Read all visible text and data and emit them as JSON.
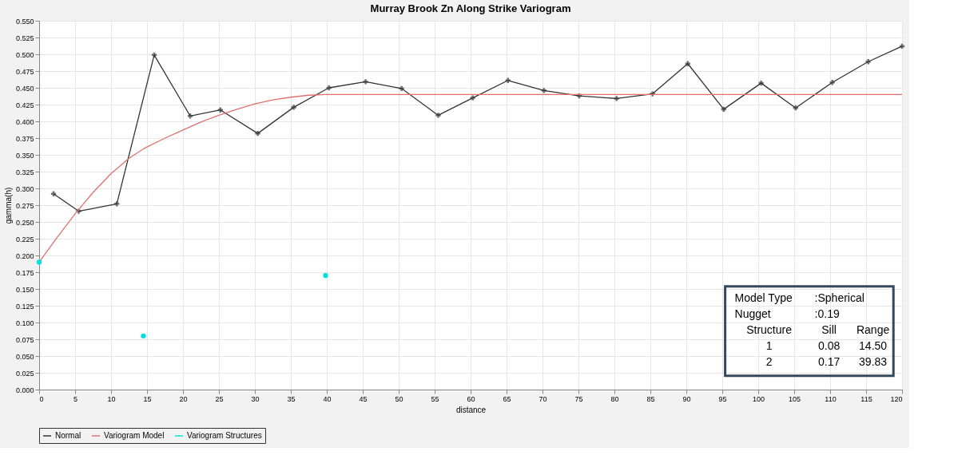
{
  "chart_data": {
    "type": "line",
    "title": "Murray Brook Zn Along Strike Variogram",
    "xlabel": "distance",
    "ylabel": "gamma(h)",
    "xlim": [
      0,
      120
    ],
    "xticks": [
      0,
      5,
      10,
      15,
      20,
      25,
      30,
      35,
      40,
      45,
      50,
      55,
      60,
      65,
      70,
      75,
      80,
      85,
      90,
      95,
      100,
      105,
      110,
      115,
      120
    ],
    "ylim": [
      0,
      0.55
    ],
    "yticks": [
      {
        "value": 0,
        "label": "0.000"
      },
      {
        "value": 0.025,
        "label": "0.025"
      },
      {
        "value": 0.05,
        "label": "0.050"
      },
      {
        "value": 0.075,
        "label": "0.075"
      },
      {
        "value": 0.1,
        "label": "0.100"
      },
      {
        "value": 0.125,
        "label": "0.125"
      },
      {
        "value": 0.15,
        "label": "0.150"
      },
      {
        "value": 0.175,
        "label": "0.175"
      },
      {
        "value": 0.2,
        "label": "0.200"
      },
      {
        "value": 0.225,
        "label": "0.225"
      },
      {
        "value": 0.25,
        "label": "0.250"
      },
      {
        "value": 0.275,
        "label": "0.275"
      },
      {
        "value": 0.3,
        "label": "0.300"
      },
      {
        "value": 0.325,
        "label": "0.325"
      },
      {
        "value": 0.35,
        "label": "0.350"
      },
      {
        "value": 0.375,
        "label": "0.375"
      },
      {
        "value": 0.4,
        "label": "0.400"
      },
      {
        "value": 0.425,
        "label": "0.425"
      },
      {
        "value": 0.45,
        "label": "0.450"
      },
      {
        "value": 0.475,
        "label": "0.475"
      },
      {
        "value": 0.5,
        "label": "0.500"
      },
      {
        "value": 0.525,
        "label": "0.525"
      },
      {
        "value": 0.55,
        "label": "0.550"
      }
    ],
    "grid": true,
    "legend": "bottom",
    "series": [
      {
        "name": "Normal",
        "type": "line",
        "color": "#333333",
        "marker": "cross",
        "x": [
          2,
          5.5,
          10.8,
          16,
          21,
          25.2,
          30.4,
          35.4,
          40.3,
          45.4,
          50.4,
          55.5,
          60.3,
          65.2,
          70.2,
          75.1,
          80.3,
          85.3,
          90.2,
          95.2,
          100.4,
          105.2,
          110.3,
          115.3,
          120
        ],
        "values": [
          0.292,
          0.266,
          0.277,
          0.499,
          0.408,
          0.417,
          0.382,
          0.421,
          0.45,
          0.459,
          0.449,
          0.409,
          0.435,
          0.461,
          0.446,
          0.438,
          0.434,
          0.441,
          0.486,
          0.418,
          0.457,
          0.42,
          0.458,
          0.489,
          0.512
        ]
      },
      {
        "name": "Variogram Model",
        "type": "line",
        "color": "#e07070",
        "marker": "none",
        "x": [
          0,
          2.5,
          5,
          7.5,
          10,
          12.5,
          14.5,
          17.5,
          20,
          22.5,
          25,
          27.5,
          30,
          32.5,
          35,
          37.5,
          39.83,
          120
        ],
        "values": [
          0.19,
          0.227,
          0.262,
          0.294,
          0.322,
          0.345,
          0.359,
          0.375,
          0.387,
          0.399,
          0.409,
          0.418,
          0.426,
          0.432,
          0.436,
          0.439,
          0.44,
          0.44
        ]
      },
      {
        "name": "Variogram Structures",
        "type": "scatter",
        "color": "#00e0e0",
        "marker": "circle",
        "x": [
          0,
          14.5,
          39.83
        ],
        "values": [
          0.19,
          0.08,
          0.17
        ]
      }
    ],
    "annotations": [
      "Model Type   :Spherical",
      "Nugget   :0.19",
      "Structure   Sill   Range",
      "1   0.08   14.50",
      "2   0.17   39.83"
    ]
  }
}
